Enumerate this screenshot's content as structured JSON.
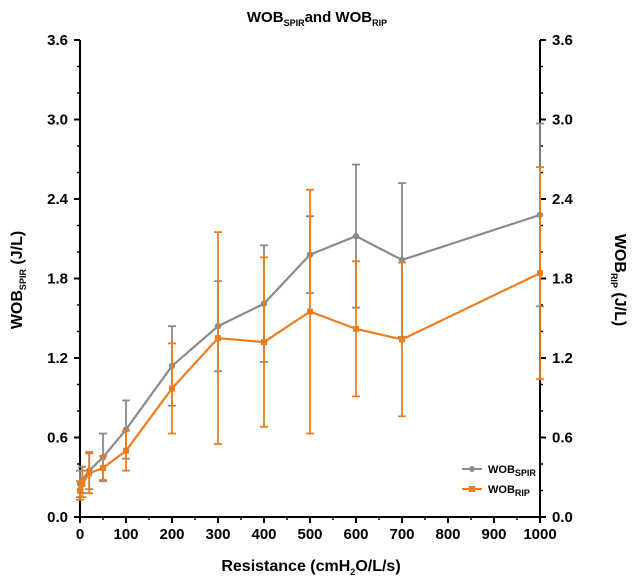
{
  "chart_data": {
    "type": "line",
    "title": {
      "main": "WOB",
      "sub1": "SPIR",
      "mid": "and WOB",
      "sub2": "RIP"
    },
    "xlabel": {
      "pre": "Resistance (cmH",
      "sub": "2",
      "post": "O/L/s)"
    },
    "ylabel_left": {
      "pre": "WOB",
      "sub": "SPIR",
      "post": " (J/L)"
    },
    "ylabel_right": {
      "pre": "WOB",
      "sub": "RIP",
      "post": " (J/L)"
    },
    "xlim": [
      0,
      1000
    ],
    "ylim": [
      0,
      3.6
    ],
    "x_ticks": [
      0,
      100,
      200,
      300,
      400,
      500,
      600,
      700,
      800,
      900,
      1000
    ],
    "x_tick_labels": [
      "0",
      "100",
      "200",
      "300",
      "400",
      "500",
      "600",
      "700",
      "800",
      "900",
      "1000"
    ],
    "y_ticks": [
      0,
      0.6,
      1.2,
      1.8,
      2.4,
      3.0,
      3.6
    ],
    "y_tick_labels": [
      "0.0",
      "0.6",
      "1.2",
      "1.8",
      "2.4",
      "3.0",
      "3.6"
    ],
    "grid": false,
    "legend_position": "bottom-right",
    "x": [
      0,
      5,
      20,
      50,
      100,
      200,
      300,
      400,
      500,
      600,
      700,
      1000
    ],
    "series": [
      {
        "name": {
          "pre": "WOB",
          "sub": "SPIR"
        },
        "color": "#8a8a8a",
        "marker": "circle",
        "values": [
          0.25,
          0.28,
          0.35,
          0.45,
          0.66,
          1.14,
          1.44,
          1.61,
          1.98,
          2.12,
          1.94,
          2.28
        ],
        "errors": [
          0.1,
          0.1,
          0.14,
          0.18,
          0.22,
          0.3,
          0.34,
          0.44,
          0.29,
          0.54,
          0.58,
          0.69
        ]
      },
      {
        "name": {
          "pre": "WOB",
          "sub": "RIP"
        },
        "color": "#ef7d1e",
        "marker": "square",
        "values": [
          0.2,
          0.25,
          0.33,
          0.37,
          0.5,
          0.97,
          1.35,
          1.32,
          1.55,
          1.42,
          1.34,
          1.84
        ],
        "errors": [
          0.07,
          0.1,
          0.15,
          0.09,
          0.15,
          0.34,
          0.8,
          0.64,
          0.92,
          0.51,
          0.58,
          0.8
        ]
      }
    ]
  }
}
